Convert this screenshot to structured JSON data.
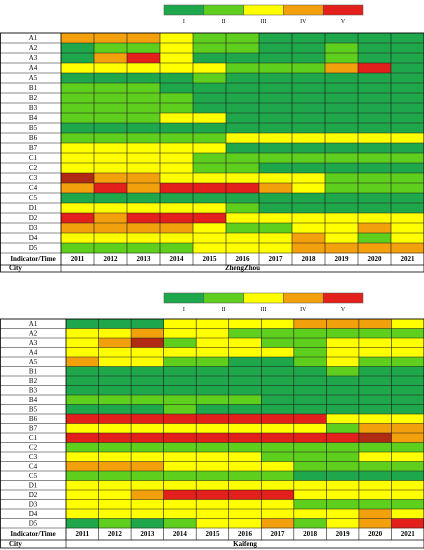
{
  "colors": {
    "I": "#1fa84b",
    "II": "#5fcf1e",
    "III": "#ffff00",
    "IV": "#f2a00c",
    "V": "#e3201b",
    "dark": "#b02a14"
  },
  "legend": {
    "levels": [
      "I",
      "II",
      "III",
      "IV",
      "V"
    ]
  },
  "chart_data": [
    {
      "type": "heatmap",
      "city": "ZhengZhou",
      "header_label": "Indicator/Time",
      "city_label": "City",
      "years": [
        "2011",
        "2012",
        "2013",
        "2014",
        "2015",
        "2016",
        "2017",
        "2018",
        "2019",
        "2020",
        "2021"
      ],
      "indicators": [
        "A1",
        "A2",
        "A3",
        "A4",
        "A5",
        "B1",
        "B2",
        "B3",
        "B4",
        "B5",
        "B6",
        "B7",
        "C1",
        "C2",
        "C3",
        "C4",
        "C5",
        "D1",
        "D2",
        "D3",
        "D4",
        "D5"
      ],
      "levels_legend": "I=1 (green) … V=5 (red)",
      "grid": [
        [
          4,
          4,
          4,
          3,
          2,
          2,
          1,
          1,
          1,
          1,
          1
        ],
        [
          1,
          2,
          2,
          3,
          2,
          2,
          1,
          1,
          2,
          1,
          1
        ],
        [
          1,
          4,
          5,
          3,
          1,
          1,
          1,
          1,
          2,
          1,
          1
        ],
        [
          3,
          3,
          3,
          3,
          3,
          2,
          2,
          2,
          4,
          5,
          1
        ],
        [
          1,
          1,
          1,
          1,
          2,
          1,
          1,
          1,
          1,
          1,
          1
        ],
        [
          2,
          2,
          2,
          1,
          1,
          1,
          1,
          1,
          1,
          1,
          1
        ],
        [
          2,
          2,
          2,
          2,
          1,
          1,
          1,
          1,
          1,
          1,
          1
        ],
        [
          2,
          2,
          2,
          2,
          1,
          1,
          1,
          1,
          1,
          1,
          1
        ],
        [
          2,
          2,
          2,
          3,
          3,
          1,
          1,
          1,
          1,
          1,
          1
        ],
        [
          1,
          1,
          1,
          1,
          1,
          1,
          1,
          1,
          1,
          1,
          1
        ],
        [
          2,
          2,
          2,
          2,
          2,
          3,
          3,
          3,
          3,
          3,
          3
        ],
        [
          3,
          3,
          3,
          3,
          3,
          1,
          1,
          1,
          1,
          1,
          1
        ],
        [
          3,
          3,
          3,
          3,
          2,
          2,
          2,
          2,
          2,
          2,
          2
        ],
        [
          3,
          3,
          3,
          3,
          2,
          2,
          1,
          1,
          1,
          1,
          1
        ],
        [
          6,
          4,
          4,
          3,
          3,
          3,
          3,
          3,
          2,
          2,
          2
        ],
        [
          4,
          5,
          4,
          5,
          5,
          5,
          4,
          3,
          2,
          2,
          2
        ],
        [
          1,
          1,
          1,
          1,
          1,
          1,
          1,
          1,
          1,
          1,
          1
        ],
        [
          3,
          3,
          3,
          3,
          3,
          2,
          1,
          1,
          1,
          1,
          1
        ],
        [
          5,
          4,
          5,
          5,
          5,
          3,
          3,
          3,
          3,
          3,
          3
        ],
        [
          4,
          4,
          4,
          4,
          3,
          2,
          2,
          3,
          3,
          4,
          3
        ],
        [
          3,
          3,
          3,
          3,
          3,
          3,
          3,
          4,
          3,
          2,
          3
        ],
        [
          2,
          2,
          2,
          2,
          3,
          3,
          3,
          4,
          4,
          4,
          4
        ]
      ]
    },
    {
      "type": "heatmap",
      "city": "Kaifeng",
      "header_label": "Indicator/Time",
      "city_label": "City",
      "years": [
        "2011",
        "2012",
        "2013",
        "2014",
        "2015",
        "2016",
        "2017",
        "2018",
        "2019",
        "2020",
        "2021"
      ],
      "indicators": [
        "A1",
        "A2",
        "A3",
        "A4",
        "A5",
        "B1",
        "B2",
        "B3",
        "B4",
        "B5",
        "B6",
        "B7",
        "C1",
        "C2",
        "C3",
        "C4",
        "C5",
        "D1",
        "D2",
        "D3",
        "D4",
        "D5"
      ],
      "levels_legend": "I=1 (green) … V=5 (red)",
      "grid": [
        [
          1,
          1,
          1,
          3,
          3,
          3,
          3,
          4,
          4,
          4,
          3
        ],
        [
          3,
          3,
          4,
          3,
          3,
          2,
          2,
          2,
          2,
          2,
          2
        ],
        [
          3,
          4,
          6,
          2,
          3,
          3,
          2,
          2,
          3,
          3,
          3
        ],
        [
          3,
          3,
          3,
          3,
          3,
          3,
          3,
          2,
          3,
          3,
          3
        ],
        [
          4,
          3,
          3,
          2,
          2,
          1,
          1,
          2,
          3,
          2,
          2
        ],
        [
          1,
          1,
          1,
          1,
          1,
          1,
          1,
          1,
          2,
          1,
          1
        ],
        [
          1,
          1,
          1,
          1,
          1,
          1,
          1,
          1,
          1,
          1,
          1
        ],
        [
          1,
          1,
          1,
          1,
          1,
          1,
          1,
          1,
          1,
          1,
          1
        ],
        [
          2,
          2,
          2,
          2,
          2,
          2,
          1,
          1,
          1,
          1,
          1
        ],
        [
          1,
          1,
          1,
          2,
          1,
          1,
          1,
          1,
          1,
          1,
          1
        ],
        [
          5,
          5,
          5,
          5,
          5,
          5,
          5,
          5,
          3,
          3,
          3
        ],
        [
          3,
          3,
          3,
          3,
          3,
          3,
          3,
          3,
          2,
          4,
          4
        ],
        [
          5,
          5,
          5,
          5,
          5,
          5,
          5,
          5,
          5,
          6,
          4
        ],
        [
          2,
          2,
          2,
          2,
          2,
          2,
          2,
          2,
          2,
          2,
          2
        ],
        [
          3,
          3,
          3,
          3,
          3,
          3,
          2,
          2,
          2,
          3,
          3
        ],
        [
          4,
          4,
          4,
          3,
          3,
          3,
          3,
          2,
          2,
          2,
          2
        ],
        [
          2,
          2,
          2,
          2,
          2,
          2,
          2,
          1,
          1,
          1,
          1
        ],
        [
          3,
          3,
          3,
          3,
          3,
          3,
          3,
          3,
          3,
          3,
          3
        ],
        [
          3,
          3,
          4,
          5,
          5,
          5,
          5,
          3,
          3,
          3,
          3
        ],
        [
          3,
          3,
          3,
          3,
          3,
          3,
          3,
          2,
          2,
          2,
          2
        ],
        [
          3,
          3,
          3,
          3,
          3,
          3,
          3,
          3,
          3,
          4,
          3
        ],
        [
          1,
          2,
          1,
          2,
          3,
          3,
          4,
          2,
          3,
          4,
          5
        ]
      ]
    }
  ]
}
